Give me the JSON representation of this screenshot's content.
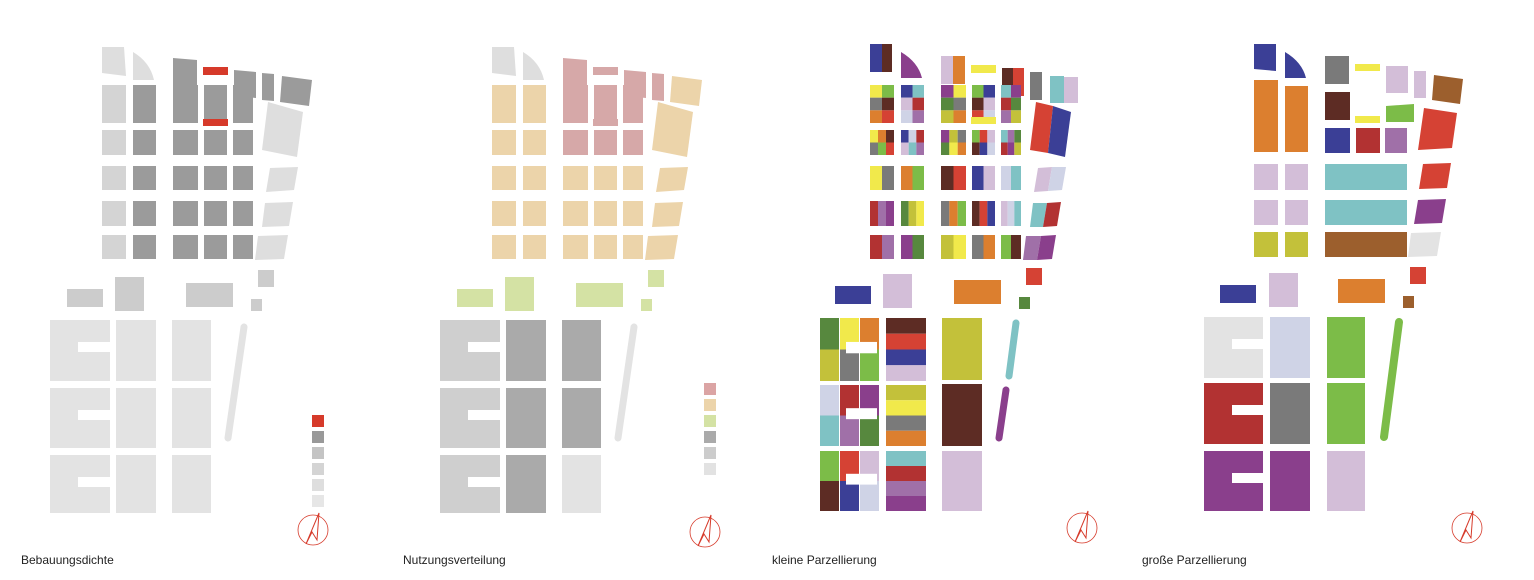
{
  "panels": [
    {
      "caption": "Bebauungsdichte",
      "style": "density"
    },
    {
      "caption": "Nutzungsverteilung",
      "style": "usage"
    },
    {
      "caption": "kleine Parzellierung",
      "style": "small"
    },
    {
      "caption": "große Parzellierung",
      "style": "large"
    }
  ],
  "legend_density": [
    "#d63a2a",
    "#999999",
    "#c4c4c4",
    "#d4d4d4",
    "#dedede",
    "#e6e6e6"
  ],
  "legend_usage": [
    "#dba4a4",
    "#ecd4aa",
    "#d4e2a4",
    "#aaaaaa",
    "#cccccc",
    "#e2e2e2"
  ],
  "colors": {
    "building_light": "#d4d4d4",
    "building_dark": "#9b9b9b",
    "building_lighter": "#dedede",
    "lower_block": "#e3e3e3",
    "residential": "#ecd4aa",
    "commercial": "#d6a8a8",
    "green": "#d4e2a4",
    "usage_lower_light": "#cfcfcf",
    "usage_lower_mid": "#aaaaaa",
    "usage_lower_lightest": "#e3e3e3",
    "north_arrow": "#d63a2a"
  },
  "palette_small": [
    "#3b3f96",
    "#5d2c24",
    "#dc7f2f",
    "#f1e94b",
    "#57883e",
    "#a070a8",
    "#7fc2c4",
    "#d3bed8",
    "#d54234",
    "#7cbc48",
    "#7a7a7a",
    "#c3c13a",
    "#8a3f8c",
    "#b23232",
    "#cfd3e6"
  ],
  "palette_large": [
    "#3b3f96",
    "#dc7f2f",
    "#7a7a7a",
    "#f1e94b",
    "#d3bed8",
    "#9c5f2d",
    "#5d2c24",
    "#7cbc48",
    "#d54234",
    "#a070a8",
    "#7fc2c4",
    "#c3c13a",
    "#e3e3e3",
    "#b23232",
    "#8a3f8c",
    "#cfd3e6"
  ],
  "north_arrow_icon": "north-arrow-icon"
}
